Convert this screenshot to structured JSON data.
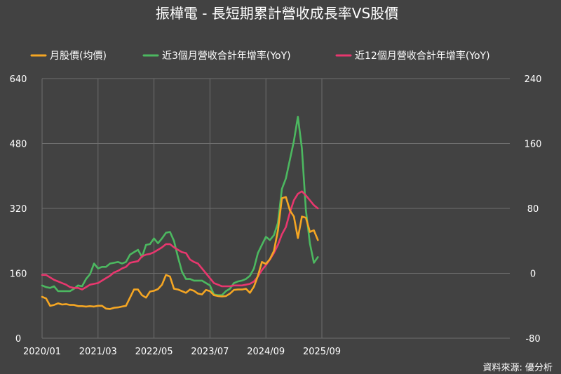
{
  "chart_data": {
    "type": "line",
    "title": "振樺電 - 長短期累計營收成長率VS股價",
    "source": "資料來源: 優分析",
    "x_tick_labels": [
      "2020/01",
      "2021/03",
      "2022/05",
      "2023/07",
      "2024/09",
      "2025/09"
    ],
    "y_left": {
      "ticks": [
        "0",
        "160",
        "320",
        "480",
        "640"
      ],
      "lim": [
        0,
        640
      ]
    },
    "y_right": {
      "ticks": [
        "-80",
        "0",
        "80",
        "160",
        "240"
      ],
      "lim": [
        -80,
        240
      ]
    },
    "grid": true,
    "legend_position": "top",
    "x_start": "2020-01",
    "series": [
      {
        "name": "月股價(均價)",
        "axis": "left",
        "color": "#f5a623",
        "values": [
          102,
          98,
          80,
          82,
          86,
          83,
          84,
          82,
          82,
          79,
          79,
          78,
          79,
          78,
          80,
          80,
          73,
          72,
          75,
          76,
          78,
          80,
          100,
          120,
          120,
          106,
          100,
          115,
          117,
          121,
          132,
          156,
          152,
          122,
          120,
          116,
          112,
          120,
          117,
          110,
          108,
          119,
          116,
          106,
          104,
          103,
          104,
          110,
          119,
          120,
          120,
          122,
          112,
          127,
          154,
          188,
          183,
          195,
          215,
          265,
          345,
          348,
          315,
          300,
          247,
          300,
          297,
          262,
          266,
          242
        ]
      },
      {
        "name": "近3個月營收合計年增率(YoY)",
        "axis": "right",
        "color": "#4cb860",
        "values": [
          -15,
          -17,
          -18,
          -16,
          -22,
          -22,
          -22,
          -22,
          -19,
          -15,
          -16,
          -7,
          -1,
          12,
          6,
          8,
          8,
          12,
          13,
          14,
          12,
          14,
          23,
          26,
          29,
          20,
          35,
          36,
          43,
          37,
          43,
          50,
          51,
          40,
          20,
          2,
          -7,
          -7,
          -9,
          -9,
          -9,
          -12,
          -15,
          -26,
          -27,
          -27,
          -22,
          -19,
          -12,
          -10,
          -9,
          -7,
          -3,
          6,
          25,
          35,
          45,
          41,
          47,
          62,
          104,
          117,
          140,
          163,
          193,
          154,
          78,
          37,
          13,
          20
        ]
      },
      {
        "name": "近12個月營收合計年增率(YoY)",
        "axis": "right",
        "color": "#e8376e",
        "values": [
          -2,
          -2,
          -5,
          -8,
          -10,
          -12,
          -14,
          -17,
          -18,
          -18,
          -20,
          -17,
          -14,
          -13,
          -12,
          -9,
          -6,
          -3,
          1,
          3,
          6,
          8,
          13,
          14,
          15,
          21,
          23,
          24,
          26,
          29,
          32,
          36,
          36,
          32,
          29,
          26,
          25,
          17,
          14,
          12,
          6,
          0,
          -6,
          -12,
          -14,
          -16,
          -16,
          -16,
          -15,
          -15,
          -15,
          -14,
          -13,
          -10,
          -4,
          4,
          10,
          17,
          25,
          35,
          48,
          57,
          75,
          90,
          98,
          101,
          96,
          90,
          84,
          80
        ]
      }
    ]
  }
}
